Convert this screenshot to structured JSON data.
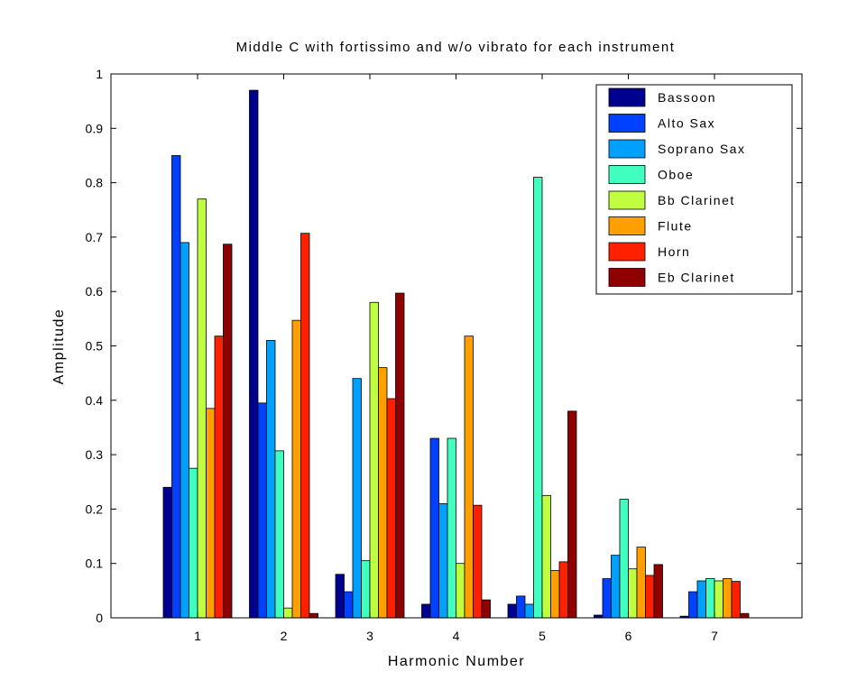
{
  "chart_data": {
    "type": "bar",
    "title": "Middle C with fortissimo and w/o vibrato for each instrument",
    "xlabel": "Harmonic Number",
    "ylabel": "Amplitude",
    "categories": [
      "1",
      "2",
      "3",
      "4",
      "5",
      "6",
      "7"
    ],
    "ylim": [
      0,
      1
    ],
    "yticks": [
      "0",
      "0.1",
      "0.2",
      "0.3",
      "0.4",
      "0.5",
      "0.6",
      "0.7",
      "0.8",
      "0.9",
      "1"
    ],
    "grid": false,
    "legend_position": "top-right",
    "series": [
      {
        "name": "Bassoon",
        "color": "#00008f",
        "values": [
          0.24,
          0.97,
          0.08,
          0.025,
          0.025,
          0.005,
          0.003
        ]
      },
      {
        "name": "Alto Sax",
        "color": "#0040ff",
        "values": [
          0.85,
          0.395,
          0.048,
          0.33,
          0.04,
          0.072,
          0.048
        ]
      },
      {
        "name": "Soprano Sax",
        "color": "#00a0ff",
        "values": [
          0.69,
          0.51,
          0.44,
          0.21,
          0.025,
          0.115,
          0.068
        ]
      },
      {
        "name": "Oboe",
        "color": "#40ffbf",
        "values": [
          0.275,
          0.307,
          0.105,
          0.33,
          0.81,
          0.218,
          0.072
        ]
      },
      {
        "name": "Bb Clarinet",
        "color": "#bfff40",
        "values": [
          0.77,
          0.018,
          0.58,
          0.1,
          0.225,
          0.09,
          0.068
        ]
      },
      {
        "name": "Flute",
        "color": "#ffa000",
        "values": [
          0.385,
          0.547,
          0.46,
          0.518,
          0.087,
          0.13,
          0.072
        ]
      },
      {
        "name": "Horn",
        "color": "#ff2000",
        "values": [
          0.518,
          0.707,
          0.403,
          0.207,
          0.103,
          0.078,
          0.067
        ]
      },
      {
        "name": "Eb Clarinet",
        "color": "#8f0000",
        "values": [
          0.687,
          0.008,
          0.597,
          0.033,
          0.38,
          0.098,
          0.008
        ]
      }
    ]
  }
}
